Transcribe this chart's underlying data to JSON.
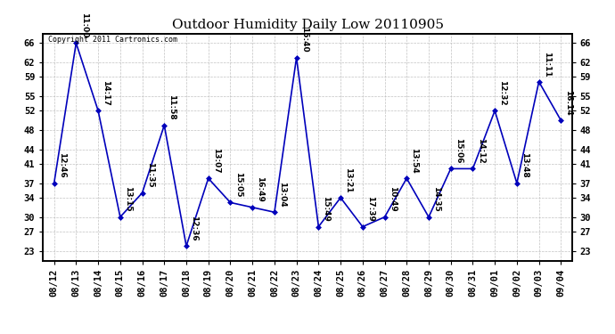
{
  "title": "Outdoor Humidity Daily Low 20110905",
  "copyright_text": "Copyright 2011 Cartronics.com",
  "x_labels": [
    "08/12",
    "08/13",
    "08/14",
    "08/15",
    "08/16",
    "08/17",
    "08/18",
    "08/19",
    "08/20",
    "08/21",
    "08/22",
    "08/23",
    "08/24",
    "08/25",
    "08/26",
    "08/27",
    "08/28",
    "08/29",
    "08/30",
    "08/31",
    "09/01",
    "09/02",
    "09/03",
    "09/04"
  ],
  "y_values": [
    37,
    66,
    52,
    30,
    35,
    49,
    24,
    38,
    33,
    32,
    31,
    63,
    28,
    34,
    28,
    30,
    38,
    30,
    40,
    40,
    52,
    37,
    58,
    50
  ],
  "point_labels": [
    "12:46",
    "11:00",
    "14:17",
    "13:15",
    "11:35",
    "11:58",
    "12:36",
    "13:07",
    "15:05",
    "16:49",
    "13:04",
    "15:40",
    "15:49",
    "13:21",
    "17:39",
    "10:49",
    "13:54",
    "14:35",
    "15:06",
    "14:12",
    "12:32",
    "13:48",
    "11:11",
    "16:14"
  ],
  "y_ticks": [
    23,
    27,
    30,
    34,
    37,
    41,
    44,
    48,
    52,
    55,
    59,
    62,
    66
  ],
  "ylim": [
    21,
    68
  ],
  "line_color": "#0000bb",
  "marker_color": "#0000bb",
  "bg_color": "#ffffff",
  "grid_color": "#bbbbbb",
  "title_fontsize": 11,
  "label_fontsize": 6.5,
  "tick_fontsize": 7.5
}
